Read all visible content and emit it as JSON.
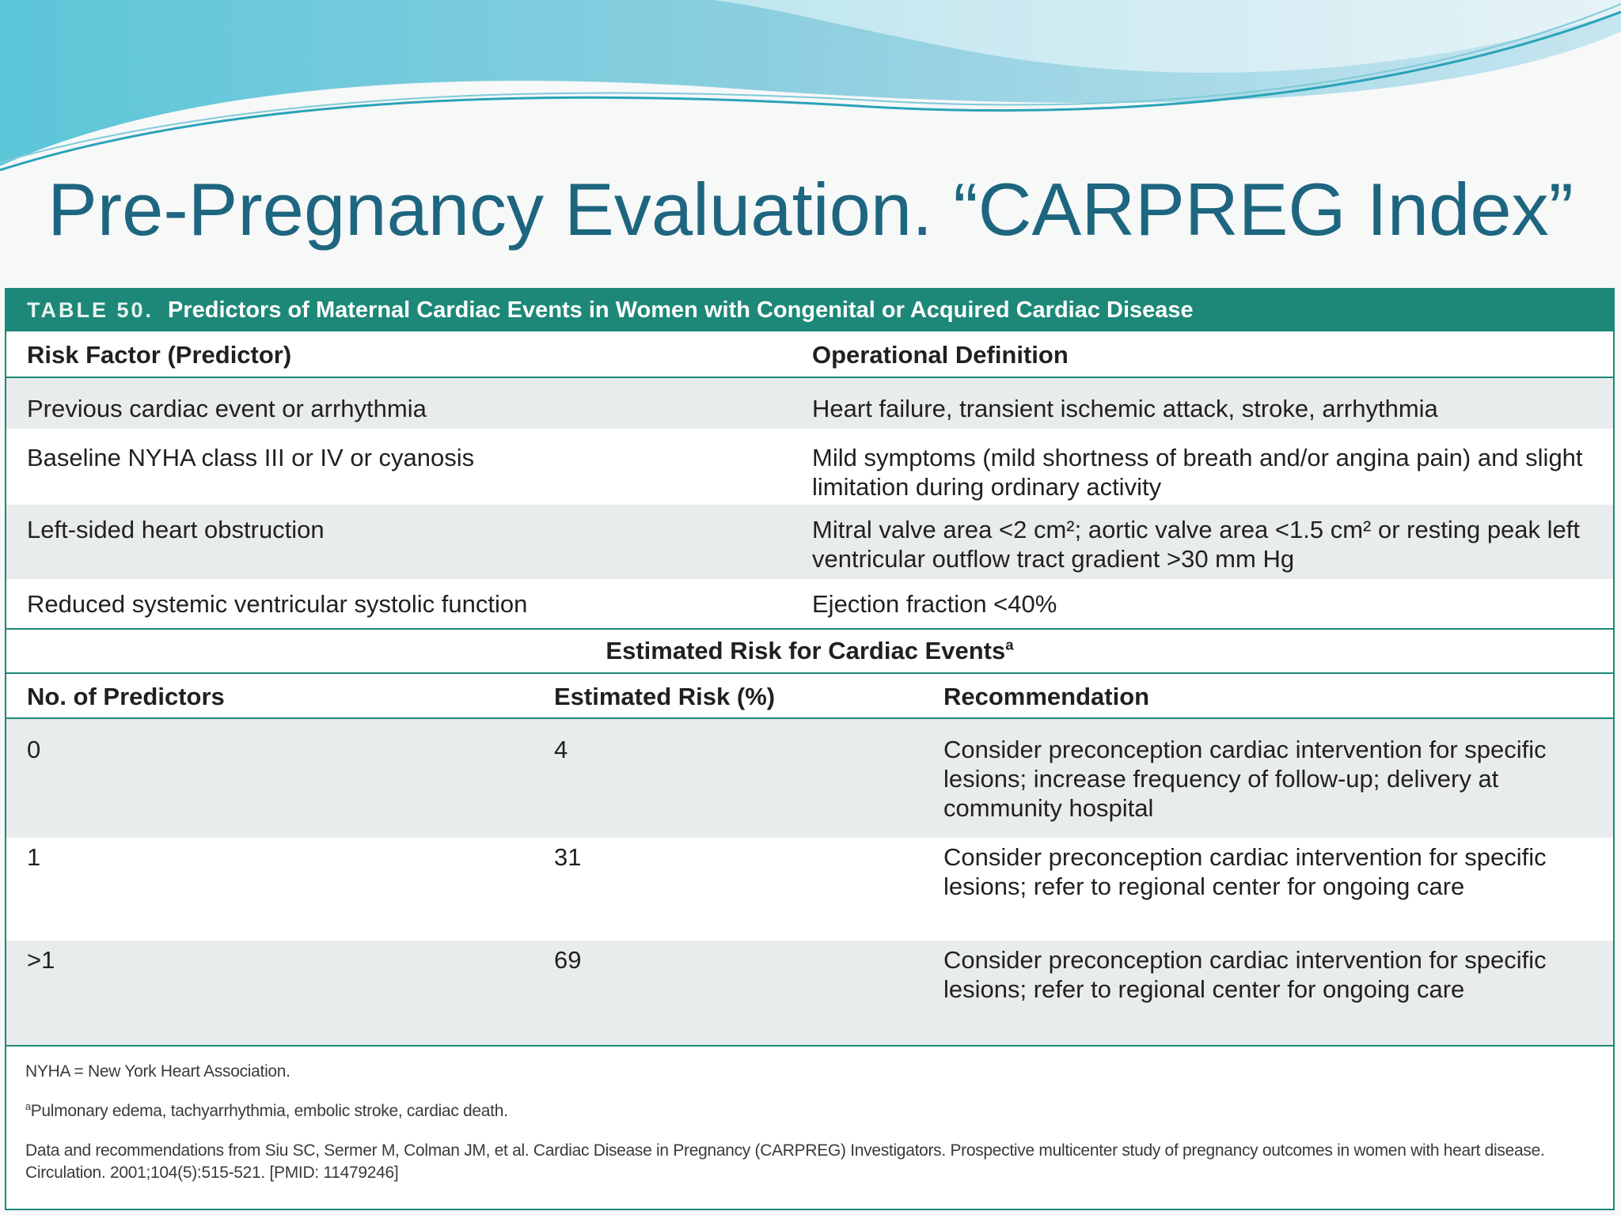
{
  "slide": {
    "title": "Pre-Pregnancy Evaluation. “CARPREG Index”"
  },
  "table": {
    "label": "TABLE 50.",
    "caption": "Predictors of Maternal Cardiac Events in Women with Congenital or Acquired Cardiac Disease",
    "predictor_headers": [
      "Risk Factor (Predictor)",
      "Operational Definition"
    ],
    "predictors": [
      {
        "factor": "Previous cardiac event or arrhythmia",
        "definition": "Heart failure, transient ischemic attack, stroke, arrhythmia"
      },
      {
        "factor": "Baseline NYHA class III or IV or cyanosis",
        "definition": "Mild symptoms (mild shortness of breath and/or angina pain) and slight limitation during ordinary activity"
      },
      {
        "factor": "Left-sided heart obstruction",
        "definition": "Mitral valve area <2 cm²; aortic valve area <1.5 cm² or resting peak left ventricular outflow tract gradient >30 mm Hg"
      },
      {
        "factor": "Reduced systemic ventricular systolic function",
        "definition": "Ejection fraction <40%"
      }
    ],
    "risk_title": "Estimated Risk for Cardiac Events",
    "risk_title_sup": "a",
    "risk_headers": [
      "No. of Predictors",
      "Estimated Risk (%)",
      "Recommendation"
    ],
    "risk_rows": [
      {
        "n": "0",
        "risk": "4",
        "rec": "Consider preconception cardiac intervention for specific lesions; increase frequency of follow-up; delivery at community hospital"
      },
      {
        "n": "1",
        "risk": "31",
        "rec": "Consider preconception cardiac intervention for specific lesions; refer to regional center for ongoing care"
      },
      {
        "n": ">1",
        "risk": "69",
        "rec": "Consider preconception cardiac intervention for specific lesions; refer to regional center for ongoing care"
      }
    ],
    "notes": {
      "abbrev": "NYHA = New York Heart Association.",
      "footnote_marker": "a",
      "footnote": "Pulmonary edema, tachyarrhythmia, embolic stroke, cardiac death.",
      "source": "Data and recommendations from Siu SC, Sermer M, Colman JM, et al. Cardiac Disease in Pregnancy (CARPREG) Investigators. Prospective multicenter study of pregnancy outcomes in women with heart disease. Circulation. 2001;104(5):515-521. [PMID: 11479246]"
    }
  },
  "colors": {
    "title": "#1e6680",
    "table_accent": "#1d8877",
    "row_shade": "#e8ecec",
    "wave_light": "#a9dfe9",
    "wave_dark": "#3eb6cc"
  }
}
